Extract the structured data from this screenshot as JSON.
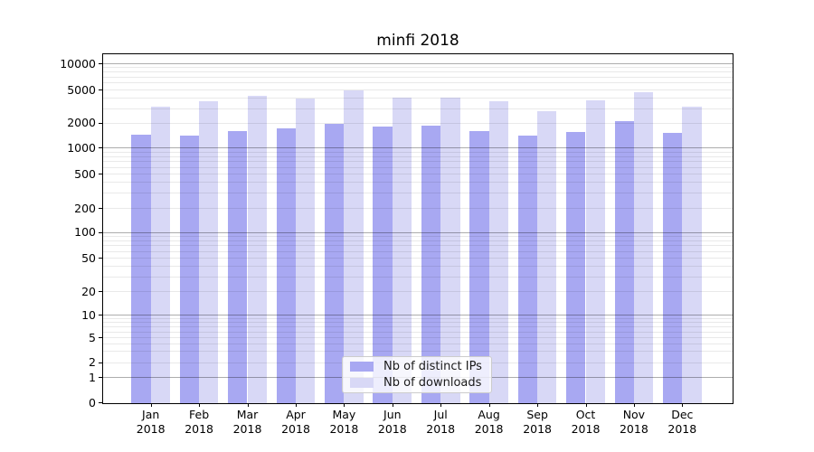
{
  "title": "minfi 2018",
  "chart_data": {
    "type": "bar",
    "title": "minfi 2018",
    "categories": [
      "Jan",
      "Feb",
      "Mar",
      "Apr",
      "May",
      "Jun",
      "Jul",
      "Aug",
      "Sep",
      "Oct",
      "Nov",
      "Dec"
    ],
    "year": "2018",
    "series": [
      {
        "name": "Nb of distinct IPs",
        "color": "#a8a8f2",
        "values": [
          1470,
          1420,
          1610,
          1750,
          2010,
          1850,
          1900,
          1640,
          1420,
          1600,
          2150,
          1550
        ]
      },
      {
        "name": "Nb of downloads",
        "color": "#d8d8f6",
        "values": [
          3210,
          3730,
          4320,
          3950,
          4980,
          4140,
          4140,
          3730,
          2840,
          3820,
          4770,
          3160
        ]
      }
    ],
    "xlabel": "",
    "ylabel": "",
    "yscale": "symlog",
    "y_ticks": [
      {
        "label": "0",
        "value": 0
      },
      {
        "label": "1",
        "value": 1
      },
      {
        "label": "2",
        "value": 2
      },
      {
        "label": "5",
        "value": 5
      },
      {
        "label": "10",
        "value": 10
      },
      {
        "label": "20",
        "value": 20
      },
      {
        "label": "50",
        "value": 50
      },
      {
        "label": "100",
        "value": 100
      },
      {
        "label": "200",
        "value": 200
      },
      {
        "label": "500",
        "value": 500
      },
      {
        "label": "1000",
        "value": 1000
      },
      {
        "label": "2000",
        "value": 2000
      },
      {
        "label": "5000",
        "value": 5000
      },
      {
        "label": "10000",
        "value": 10000
      }
    ],
    "ylim": [
      0,
      12800
    ],
    "grid": "horizontal, major and minor, drawn over bars",
    "legend_position": "lower center inside plot"
  }
}
